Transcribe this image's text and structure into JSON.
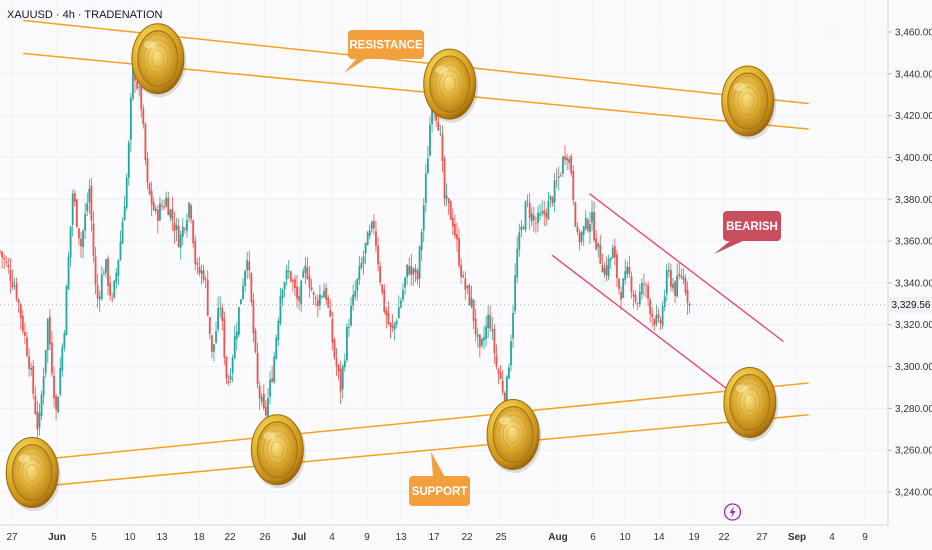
{
  "header": {
    "symbol_line": "XAUUSD · 4h · TRADENATION"
  },
  "colors": {
    "background": "#fbfafd",
    "bull": "#26a69a",
    "bear": "#ef5350",
    "support_resistance": "#f7a21b",
    "bearish_channel": "#e84a6a",
    "callout_orange": "#f2a03d",
    "callout_red": "#c94f5f",
    "coin_gold": "#d4a227",
    "event_marker": "#9c27b0"
  },
  "annotations": {
    "resistance_label": "RESISTANCE",
    "support_label": "SUPPORT",
    "bearish_label": "BEARISH"
  },
  "icons": {
    "coin": "gold-coin-icon",
    "event": "lightning-icon"
  },
  "chart_data": {
    "type": "candlestick",
    "title": "",
    "y_axis_side": "right",
    "ylim": [
      3228,
      3470
    ],
    "y_ticks": [
      "3,240.00",
      "3,260.00",
      "3,280.00",
      "3,300.00",
      "3,320.00",
      "3,340.00",
      "3,360.00",
      "3,380.00",
      "3,400.00",
      "3,420.00",
      "3,440.00",
      "3,460.00"
    ],
    "y_tick_values": [
      3240,
      3260,
      3280,
      3300,
      3320,
      3340,
      3360,
      3380,
      3400,
      3420,
      3440,
      3460
    ],
    "x_ticks": [
      "27",
      "Jun",
      "5",
      "10",
      "13",
      "18",
      "22",
      "26",
      "Jul",
      "4",
      "9",
      "13",
      "17",
      "22",
      "25",
      "Aug",
      "6",
      "10",
      "14",
      "19",
      "22",
      "27",
      "Sep",
      "4",
      "9"
    ],
    "x_tick_bold": [
      "Jun",
      "Jul",
      "Aug",
      "Sep"
    ],
    "last_price": "3,329.56",
    "last_price_value": 3329.56,
    "price_path": [
      [
        0,
        3355
      ],
      [
        1.5,
        3338
      ],
      [
        2.8,
        3303
      ],
      [
        3.7,
        3268
      ],
      [
        4.6,
        3322
      ],
      [
        5.4,
        3278
      ],
      [
        6.2,
        3320
      ],
      [
        7.0,
        3383
      ],
      [
        7.8,
        3358
      ],
      [
        8.6,
        3385
      ],
      [
        9.3,
        3330
      ],
      [
        10.1,
        3350
      ],
      [
        10.8,
        3330
      ],
      [
        11.6,
        3360
      ],
      [
        12.3,
        3395
      ],
      [
        12.8,
        3445
      ],
      [
        13.6,
        3425
      ],
      [
        14.2,
        3385
      ],
      [
        15.0,
        3372
      ],
      [
        16.0,
        3380
      ],
      [
        17.3,
        3360
      ],
      [
        18.3,
        3380
      ],
      [
        18.9,
        3345
      ],
      [
        19.7,
        3345
      ],
      [
        20.4,
        3305
      ],
      [
        21.2,
        3330
      ],
      [
        21.9,
        3290
      ],
      [
        22.8,
        3320
      ],
      [
        23.8,
        3355
      ],
      [
        24.8,
        3290
      ],
      [
        25.5,
        3275
      ],
      [
        26.3,
        3300
      ],
      [
        27.1,
        3340
      ],
      [
        27.9,
        3345
      ],
      [
        28.7,
        3330
      ],
      [
        29.5,
        3348
      ],
      [
        30.3,
        3330
      ],
      [
        31.3,
        3338
      ],
      [
        32.2,
        3305
      ],
      [
        32.8,
        3290
      ],
      [
        33.5,
        3320
      ],
      [
        34.4,
        3340
      ],
      [
        35.2,
        3357
      ],
      [
        36.0,
        3368
      ],
      [
        36.9,
        3330
      ],
      [
        37.7,
        3315
      ],
      [
        38.5,
        3330
      ],
      [
        39.3,
        3348
      ],
      [
        40.2,
        3342
      ],
      [
        41.1,
        3395
      ],
      [
        41.6,
        3430
      ],
      [
        42.3,
        3415
      ],
      [
        42.8,
        3380
      ],
      [
        43.6,
        3370
      ],
      [
        44.6,
        3340
      ],
      [
        45.4,
        3330
      ],
      [
        46.2,
        3305
      ],
      [
        47.1,
        3325
      ],
      [
        47.8,
        3300
      ],
      [
        48.7,
        3285
      ],
      [
        49.2,
        3315
      ],
      [
        49.8,
        3355
      ],
      [
        50.7,
        3378
      ],
      [
        51.5,
        3368
      ],
      [
        52.3,
        3372
      ],
      [
        53.1,
        3380
      ],
      [
        53.9,
        3392
      ],
      [
        54.5,
        3405
      ],
      [
        55.0,
        3394
      ],
      [
        55.6,
        3360
      ],
      [
        56.2,
        3365
      ],
      [
        56.9,
        3372
      ],
      [
        57.6,
        3355
      ],
      [
        58.3,
        3345
      ],
      [
        59.0,
        3355
      ],
      [
        59.7,
        3335
      ],
      [
        60.5,
        3345
      ],
      [
        61.3,
        3330
      ],
      [
        62.0,
        3340
      ],
      [
        62.8,
        3325
      ],
      [
        63.5,
        3318
      ],
      [
        64.3,
        3345
      ],
      [
        65.0,
        3337
      ],
      [
        65.7,
        3345
      ],
      [
        66.4,
        3329.56
      ]
    ],
    "x_domain": [
      0,
      85.5
    ],
    "resistance_channel": [
      {
        "x0": 2.3,
        "y0": 3465.5,
        "x1": 77.8,
        "y1": 3425.8
      },
      {
        "x0": 2.3,
        "y0": 3449.7,
        "x1": 77.8,
        "y1": 3413.6
      }
    ],
    "support_channel": [
      {
        "x0": 5.0,
        "y0": 3256.1,
        "x1": 77.8,
        "y1": 3292.1
      },
      {
        "x0": 5.0,
        "y0": 3243.2,
        "x1": 77.8,
        "y1": 3276.9
      }
    ],
    "bearish_channel": [
      {
        "x0": 56.8,
        "y0": 3382.5,
        "x1": 75.4,
        "y1": 3312.1
      },
      {
        "x0": 53.2,
        "y0": 3353.1,
        "x1": 71.2,
        "y1": 3284.7
      }
    ],
    "coins": [
      {
        "x": 15.2,
        "y": 3447.2
      },
      {
        "x": 43.3,
        "y": 3435.1
      },
      {
        "x": 72.0,
        "y": 3427.0
      },
      {
        "x": 3.1,
        "y": 3249.3
      },
      {
        "x": 26.7,
        "y": 3260.2
      },
      {
        "x": 49.4,
        "y": 3267.5
      },
      {
        "x": 72.2,
        "y": 3282.8
      }
    ]
  }
}
